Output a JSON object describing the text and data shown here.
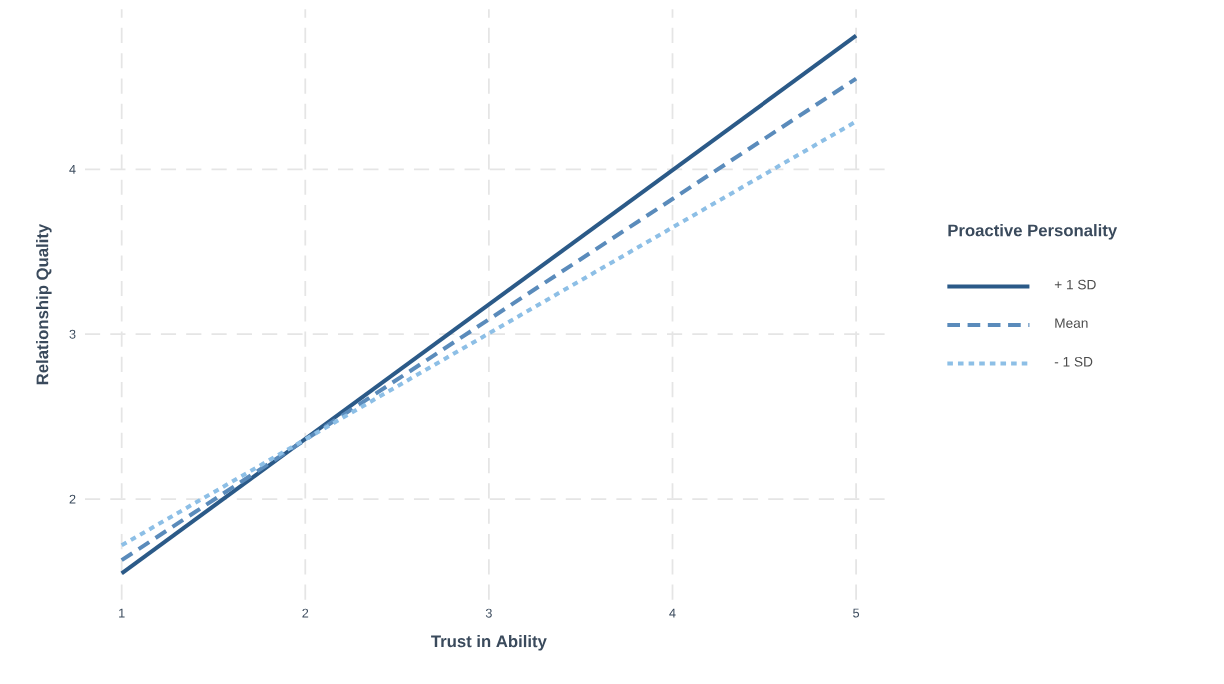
{
  "chart_data": {
    "type": "line",
    "xlabel": "Trust in Ability",
    "ylabel": "Relationship Quality",
    "legend_title": "Proactive Personality",
    "x": [
      1,
      5
    ],
    "series": [
      {
        "name": "+ 1 SD",
        "color": "#2b5a88",
        "line_style": "solid",
        "values": [
          1.55,
          4.81
        ]
      },
      {
        "name": "Mean",
        "color": "#5a8bbb",
        "line_style": "dashed",
        "values": [
          1.63,
          4.55
        ]
      },
      {
        "name": "- 1 SD",
        "color": "#8dbfe6",
        "line_style": "dotted",
        "values": [
          1.72,
          4.29
        ]
      }
    ],
    "xlim": [
      0.8,
      5.2
    ],
    "ylim": [
      1.39,
      4.97
    ],
    "xticks": [
      1,
      2,
      3,
      4,
      5
    ],
    "yticks": [
      2,
      3,
      4
    ],
    "grid": true,
    "legend": "right"
  }
}
